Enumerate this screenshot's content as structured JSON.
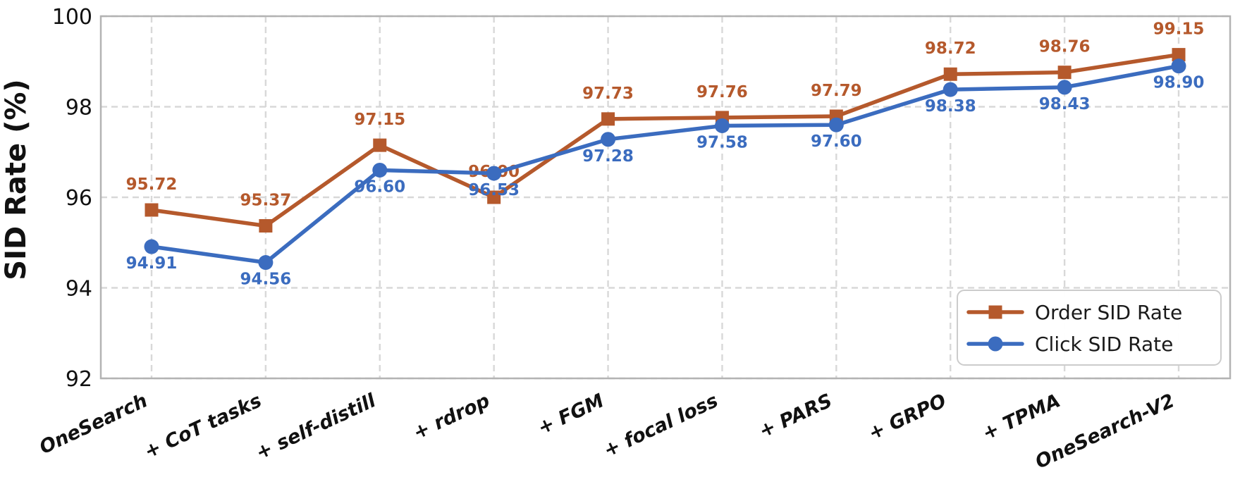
{
  "chart_data": {
    "type": "line",
    "title": "",
    "xlabel": "",
    "ylabel": "SID Rate (%)",
    "categories": [
      "OneSearch",
      "+ CoT tasks",
      "+ self-distill",
      "+ rdrop",
      "+ FGM",
      "+ focal loss",
      "+ PARS",
      "+ GRPO",
      "+ TPMA",
      "OneSearch-V2"
    ],
    "series": [
      {
        "name": "Order SID Rate",
        "marker": "square",
        "color": "#b5592c",
        "values": [
          95.72,
          95.37,
          97.15,
          96.0,
          97.73,
          97.76,
          97.79,
          98.72,
          98.76,
          99.15
        ]
      },
      {
        "name": "Click SID Rate",
        "marker": "circle",
        "color": "#3b6cbf",
        "values": [
          94.91,
          94.56,
          96.6,
          96.53,
          97.28,
          97.58,
          97.6,
          98.38,
          98.43,
          98.9
        ]
      }
    ],
    "ylim": [
      92,
      100
    ],
    "yticks": [
      92,
      94,
      96,
      98,
      100
    ],
    "grid": true,
    "grid_style": "dashed",
    "legend_position": "lower right",
    "value_label_decimals": 2
  },
  "style": {
    "background": "#ffffff",
    "grid_color": "#d8d8d8",
    "spine_color": "#b3b3b3",
    "tick_label_color": "#111111",
    "legend_text_color": "#1a1a1a",
    "legend_border_color": "#cccccc",
    "legend_background": "#ffffff"
  }
}
